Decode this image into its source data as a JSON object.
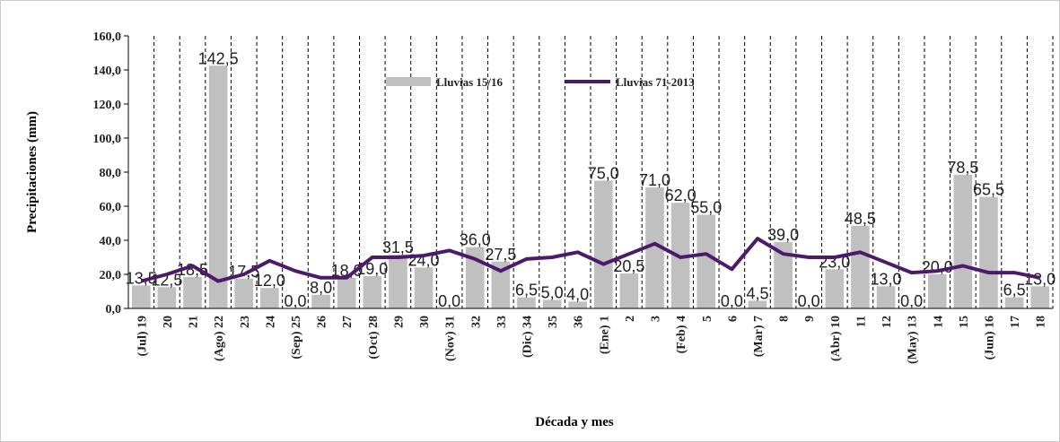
{
  "chart_data": {
    "type": "bar_line",
    "x_label": "Década y mes",
    "y_label": "Precipitaciones (mm)",
    "categories": [
      "(Jul) 19",
      "20",
      "21",
      "(Ago) 22",
      "23",
      "24",
      "(Sep) 25",
      "26",
      "27",
      "(Oct) 28",
      "29",
      "30",
      "(Nov) 31",
      "32",
      "33",
      "(Dic) 34",
      "35",
      "36",
      "(Ene) 1",
      "2",
      "3",
      "(Feb) 4",
      "5",
      "6",
      "(Mar) 7",
      "8",
      "9",
      "(Abr) 10",
      "11",
      "12",
      "(May) 13",
      "14",
      "15",
      "(Jun) 16",
      "17",
      "18"
    ],
    "series": [
      {
        "name": "Lluvias 15/16",
        "type": "bar",
        "color": "#c0c0c0",
        "values": [
          13.5,
          12.5,
          18.5,
          142.5,
          17.5,
          12.0,
          0.0,
          8.0,
          18.0,
          19.0,
          31.5,
          24.0,
          0.0,
          36.0,
          27.5,
          6.5,
          5.0,
          4.0,
          75.0,
          20.5,
          71.0,
          62.0,
          55.0,
          0.0,
          4.5,
          39.0,
          0.0,
          23.0,
          48.5,
          13.0,
          0.0,
          20.0,
          78.5,
          65.5,
          6.5,
          13.0
        ],
        "value_labels": [
          "13,5",
          "12,5",
          "18,5",
          "142,5",
          "17,5",
          "12,0",
          "0,0",
          "8,0",
          "18,0",
          "19,0",
          "31,5",
          "24,0",
          "0,0",
          "36,0",
          "27,5",
          "6,5",
          "5,0",
          "4,0",
          "75,0",
          "20,5",
          "71,0",
          "62,0",
          "55,0",
          "0,0",
          "4,5",
          "39,0",
          "0,0",
          "23,0",
          "48,5",
          "13,0",
          "0,0",
          "20,0",
          "78,5",
          "65,5",
          "6,5",
          "13,0"
        ]
      },
      {
        "name": "Lluvias 71-2013",
        "type": "line",
        "color": "#4b1a6b",
        "values": [
          16,
          20,
          25,
          16,
          20,
          28,
          22,
          18,
          18,
          30,
          30,
          31,
          34,
          29,
          22,
          29,
          30,
          33,
          26,
          32,
          38,
          30,
          32,
          23,
          41,
          32,
          30,
          30,
          33,
          27,
          21,
          22,
          25,
          21,
          21,
          18
        ]
      }
    ],
    "ylim": [
      0,
      160
    ],
    "yticks": [
      {
        "value": 0,
        "label": "0,0"
      },
      {
        "value": 20,
        "label": "20,0"
      },
      {
        "value": 40,
        "label": "40,0"
      },
      {
        "value": 60,
        "label": "60,0"
      },
      {
        "value": 80,
        "label": "80,0"
      },
      {
        "value": 100,
        "label": "100,0"
      },
      {
        "value": 120,
        "label": "120,0"
      },
      {
        "value": 140,
        "label": "140,0"
      },
      {
        "value": 160,
        "label": "160,0"
      }
    ]
  }
}
